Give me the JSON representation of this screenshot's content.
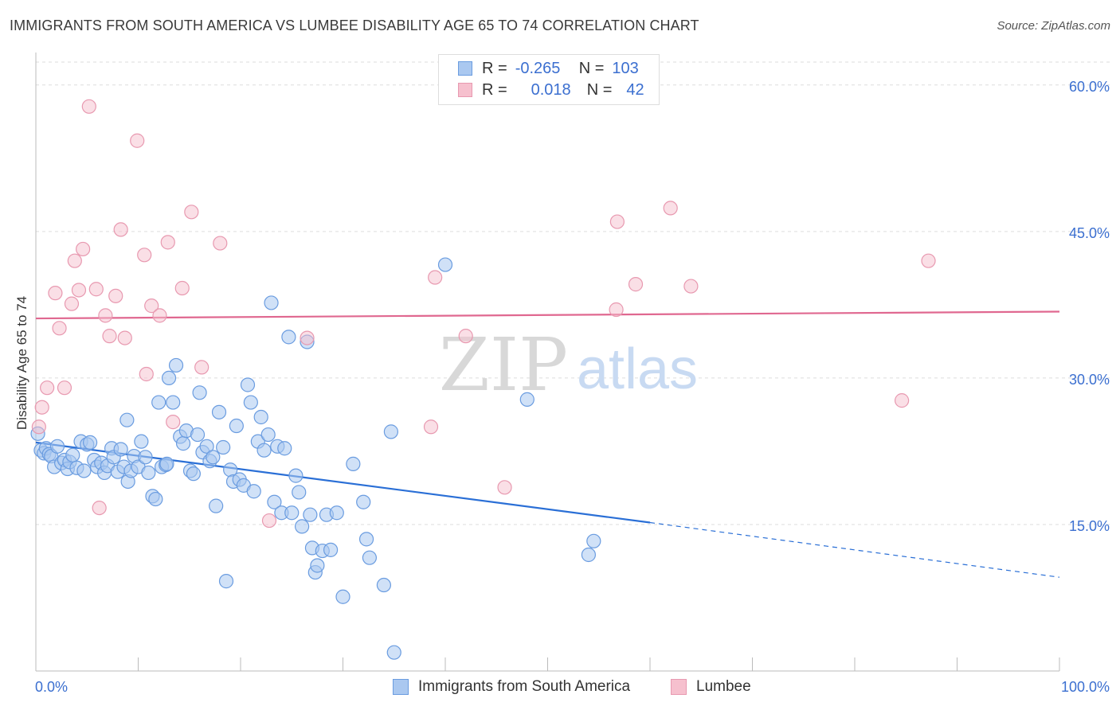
{
  "header": {
    "title": "IMMIGRANTS FROM SOUTH AMERICA VS LUMBEE DISABILITY AGE 65 TO 74 CORRELATION CHART",
    "source": "Source: ZipAtlas.com"
  },
  "watermark": {
    "zip": "ZIP",
    "atlas": "atlas"
  },
  "legend": {
    "rows": [
      {
        "r_label": "R =",
        "r_value": "-0.265",
        "n_label": "N =",
        "n_value": "103"
      },
      {
        "r_label": "R =",
        "r_value": "0.018",
        "n_label": "N =",
        "n_value": "42"
      }
    ]
  },
  "colors": {
    "blue_fill": "#aac8f0",
    "blue_stroke": "#6a9ce0",
    "blue_line": "#2a6fd6",
    "pink_fill": "#f6c0ce",
    "pink_stroke": "#e899b0",
    "pink_line": "#e06890",
    "axis_text": "#3b6fd0",
    "grid": "#dddddd"
  },
  "chart_data": {
    "type": "scatter",
    "xlabel": "",
    "ylabel": "Disability Age 65 to 74",
    "xlim": [
      0,
      100
    ],
    "ylim": [
      0,
      63
    ],
    "x_tick_labels": [
      "0.0%",
      "100.0%"
    ],
    "y_ticks": [
      15,
      30,
      45,
      60
    ],
    "y_tick_labels": [
      "15.0%",
      "30.0%",
      "45.0%",
      "60.0%"
    ],
    "grid": "horizontal dashed",
    "legend_position": "top-center",
    "series": [
      {
        "name": "Immigrants from South America",
        "color": "#aac8f0",
        "trend": {
          "x": [
            0,
            60
          ],
          "y": [
            23.4,
            15.2
          ],
          "dashed_to": [
            100,
            9.6
          ]
        },
        "points": [
          [
            0.2,
            24.3
          ],
          [
            0.5,
            22.6
          ],
          [
            0.8,
            22.3
          ],
          [
            1.0,
            22.8
          ],
          [
            1.3,
            22.2
          ],
          [
            1.5,
            22.0
          ],
          [
            1.8,
            20.9
          ],
          [
            2.1,
            23.0
          ],
          [
            2.5,
            21.3
          ],
          [
            2.8,
            21.6
          ],
          [
            3.1,
            20.7
          ],
          [
            3.3,
            21.4
          ],
          [
            3.6,
            22.1
          ],
          [
            4.0,
            20.8
          ],
          [
            4.4,
            23.5
          ],
          [
            4.7,
            20.5
          ],
          [
            5.0,
            23.2
          ],
          [
            5.3,
            23.4
          ],
          [
            5.7,
            21.6
          ],
          [
            6.0,
            20.9
          ],
          [
            6.4,
            21.3
          ],
          [
            6.7,
            20.3
          ],
          [
            7.0,
            21.0
          ],
          [
            7.4,
            22.8
          ],
          [
            7.6,
            21.9
          ],
          [
            8.0,
            20.4
          ],
          [
            8.3,
            22.7
          ],
          [
            8.6,
            20.9
          ],
          [
            9.0,
            19.4
          ],
          [
            9.3,
            20.5
          ],
          [
            9.6,
            22.0
          ],
          [
            10.0,
            20.9
          ],
          [
            10.3,
            23.5
          ],
          [
            10.7,
            21.9
          ],
          [
            11.0,
            20.3
          ],
          [
            11.4,
            17.9
          ],
          [
            11.7,
            17.6
          ],
          [
            12.0,
            27.5
          ],
          [
            12.3,
            20.9
          ],
          [
            12.7,
            21.1
          ],
          [
            13.0,
            30.0
          ],
          [
            13.4,
            27.5
          ],
          [
            13.7,
            31.3
          ],
          [
            14.1,
            24.0
          ],
          [
            14.4,
            23.3
          ],
          [
            14.7,
            24.6
          ],
          [
            15.1,
            20.5
          ],
          [
            15.4,
            20.2
          ],
          [
            16.0,
            28.5
          ],
          [
            16.3,
            22.4
          ],
          [
            16.7,
            23.0
          ],
          [
            17.0,
            21.5
          ],
          [
            17.3,
            21.9
          ],
          [
            17.6,
            16.9
          ],
          [
            17.9,
            26.5
          ],
          [
            18.3,
            22.9
          ],
          [
            18.6,
            9.2
          ],
          [
            19.0,
            20.6
          ],
          [
            19.3,
            19.4
          ],
          [
            19.6,
            25.1
          ],
          [
            19.9,
            19.6
          ],
          [
            20.3,
            19.0
          ],
          [
            20.7,
            29.3
          ],
          [
            21.0,
            27.5
          ],
          [
            21.3,
            18.4
          ],
          [
            21.7,
            23.5
          ],
          [
            22.0,
            26.0
          ],
          [
            22.3,
            22.6
          ],
          [
            22.7,
            24.2
          ],
          [
            23.0,
            37.7
          ],
          [
            23.3,
            17.3
          ],
          [
            23.6,
            23.0
          ],
          [
            24.0,
            16.2
          ],
          [
            24.3,
            22.8
          ],
          [
            24.7,
            34.2
          ],
          [
            25.0,
            16.2
          ],
          [
            25.4,
            20.0
          ],
          [
            25.7,
            18.3
          ],
          [
            26.0,
            14.8
          ],
          [
            26.5,
            33.7
          ],
          [
            27.0,
            12.6
          ],
          [
            27.3,
            10.1
          ],
          [
            27.5,
            10.8
          ],
          [
            28.0,
            12.3
          ],
          [
            28.4,
            16.0
          ],
          [
            28.8,
            12.4
          ],
          [
            29.4,
            16.2
          ],
          [
            30.0,
            7.6
          ],
          [
            31.0,
            21.2
          ],
          [
            32.0,
            17.3
          ],
          [
            32.3,
            13.5
          ],
          [
            32.6,
            11.6
          ],
          [
            34.0,
            8.8
          ],
          [
            34.7,
            24.5
          ],
          [
            35.0,
            1.9
          ],
          [
            40.0,
            41.6
          ],
          [
            48.0,
            27.8
          ],
          [
            54.0,
            11.9
          ],
          [
            54.5,
            13.3
          ],
          [
            26.8,
            16.0
          ],
          [
            15.8,
            24.2
          ],
          [
            12.8,
            21.2
          ],
          [
            8.9,
            25.7
          ]
        ]
      },
      {
        "name": "Lumbee",
        "color": "#f6c0ce",
        "trend": {
          "x": [
            0,
            100
          ],
          "y": [
            36.1,
            36.8
          ]
        },
        "points": [
          [
            0.3,
            25.0
          ],
          [
            0.6,
            27.0
          ],
          [
            1.1,
            29.0
          ],
          [
            1.9,
            38.7
          ],
          [
            2.3,
            35.1
          ],
          [
            2.8,
            29.0
          ],
          [
            3.5,
            37.6
          ],
          [
            3.8,
            42.0
          ],
          [
            4.2,
            39.0
          ],
          [
            4.6,
            43.2
          ],
          [
            5.2,
            57.8
          ],
          [
            5.9,
            39.1
          ],
          [
            6.2,
            16.7
          ],
          [
            6.8,
            36.4
          ],
          [
            7.2,
            34.3
          ],
          [
            7.8,
            38.4
          ],
          [
            8.3,
            45.2
          ],
          [
            8.7,
            34.1
          ],
          [
            9.9,
            54.3
          ],
          [
            10.6,
            42.6
          ],
          [
            10.8,
            30.4
          ],
          [
            11.3,
            37.4
          ],
          [
            12.1,
            36.4
          ],
          [
            12.9,
            43.9
          ],
          [
            13.4,
            25.5
          ],
          [
            14.3,
            39.2
          ],
          [
            15.2,
            47.0
          ],
          [
            16.2,
            31.1
          ],
          [
            18.0,
            43.8
          ],
          [
            22.8,
            15.4
          ],
          [
            26.5,
            34.1
          ],
          [
            38.6,
            25.0
          ],
          [
            39.0,
            40.3
          ],
          [
            42.0,
            34.3
          ],
          [
            45.8,
            18.8
          ],
          [
            56.7,
            37.0
          ],
          [
            56.8,
            46.0
          ],
          [
            58.6,
            39.6
          ],
          [
            62.0,
            47.4
          ],
          [
            64.0,
            39.4
          ],
          [
            84.6,
            27.7
          ],
          [
            87.2,
            42.0
          ]
        ]
      }
    ]
  }
}
